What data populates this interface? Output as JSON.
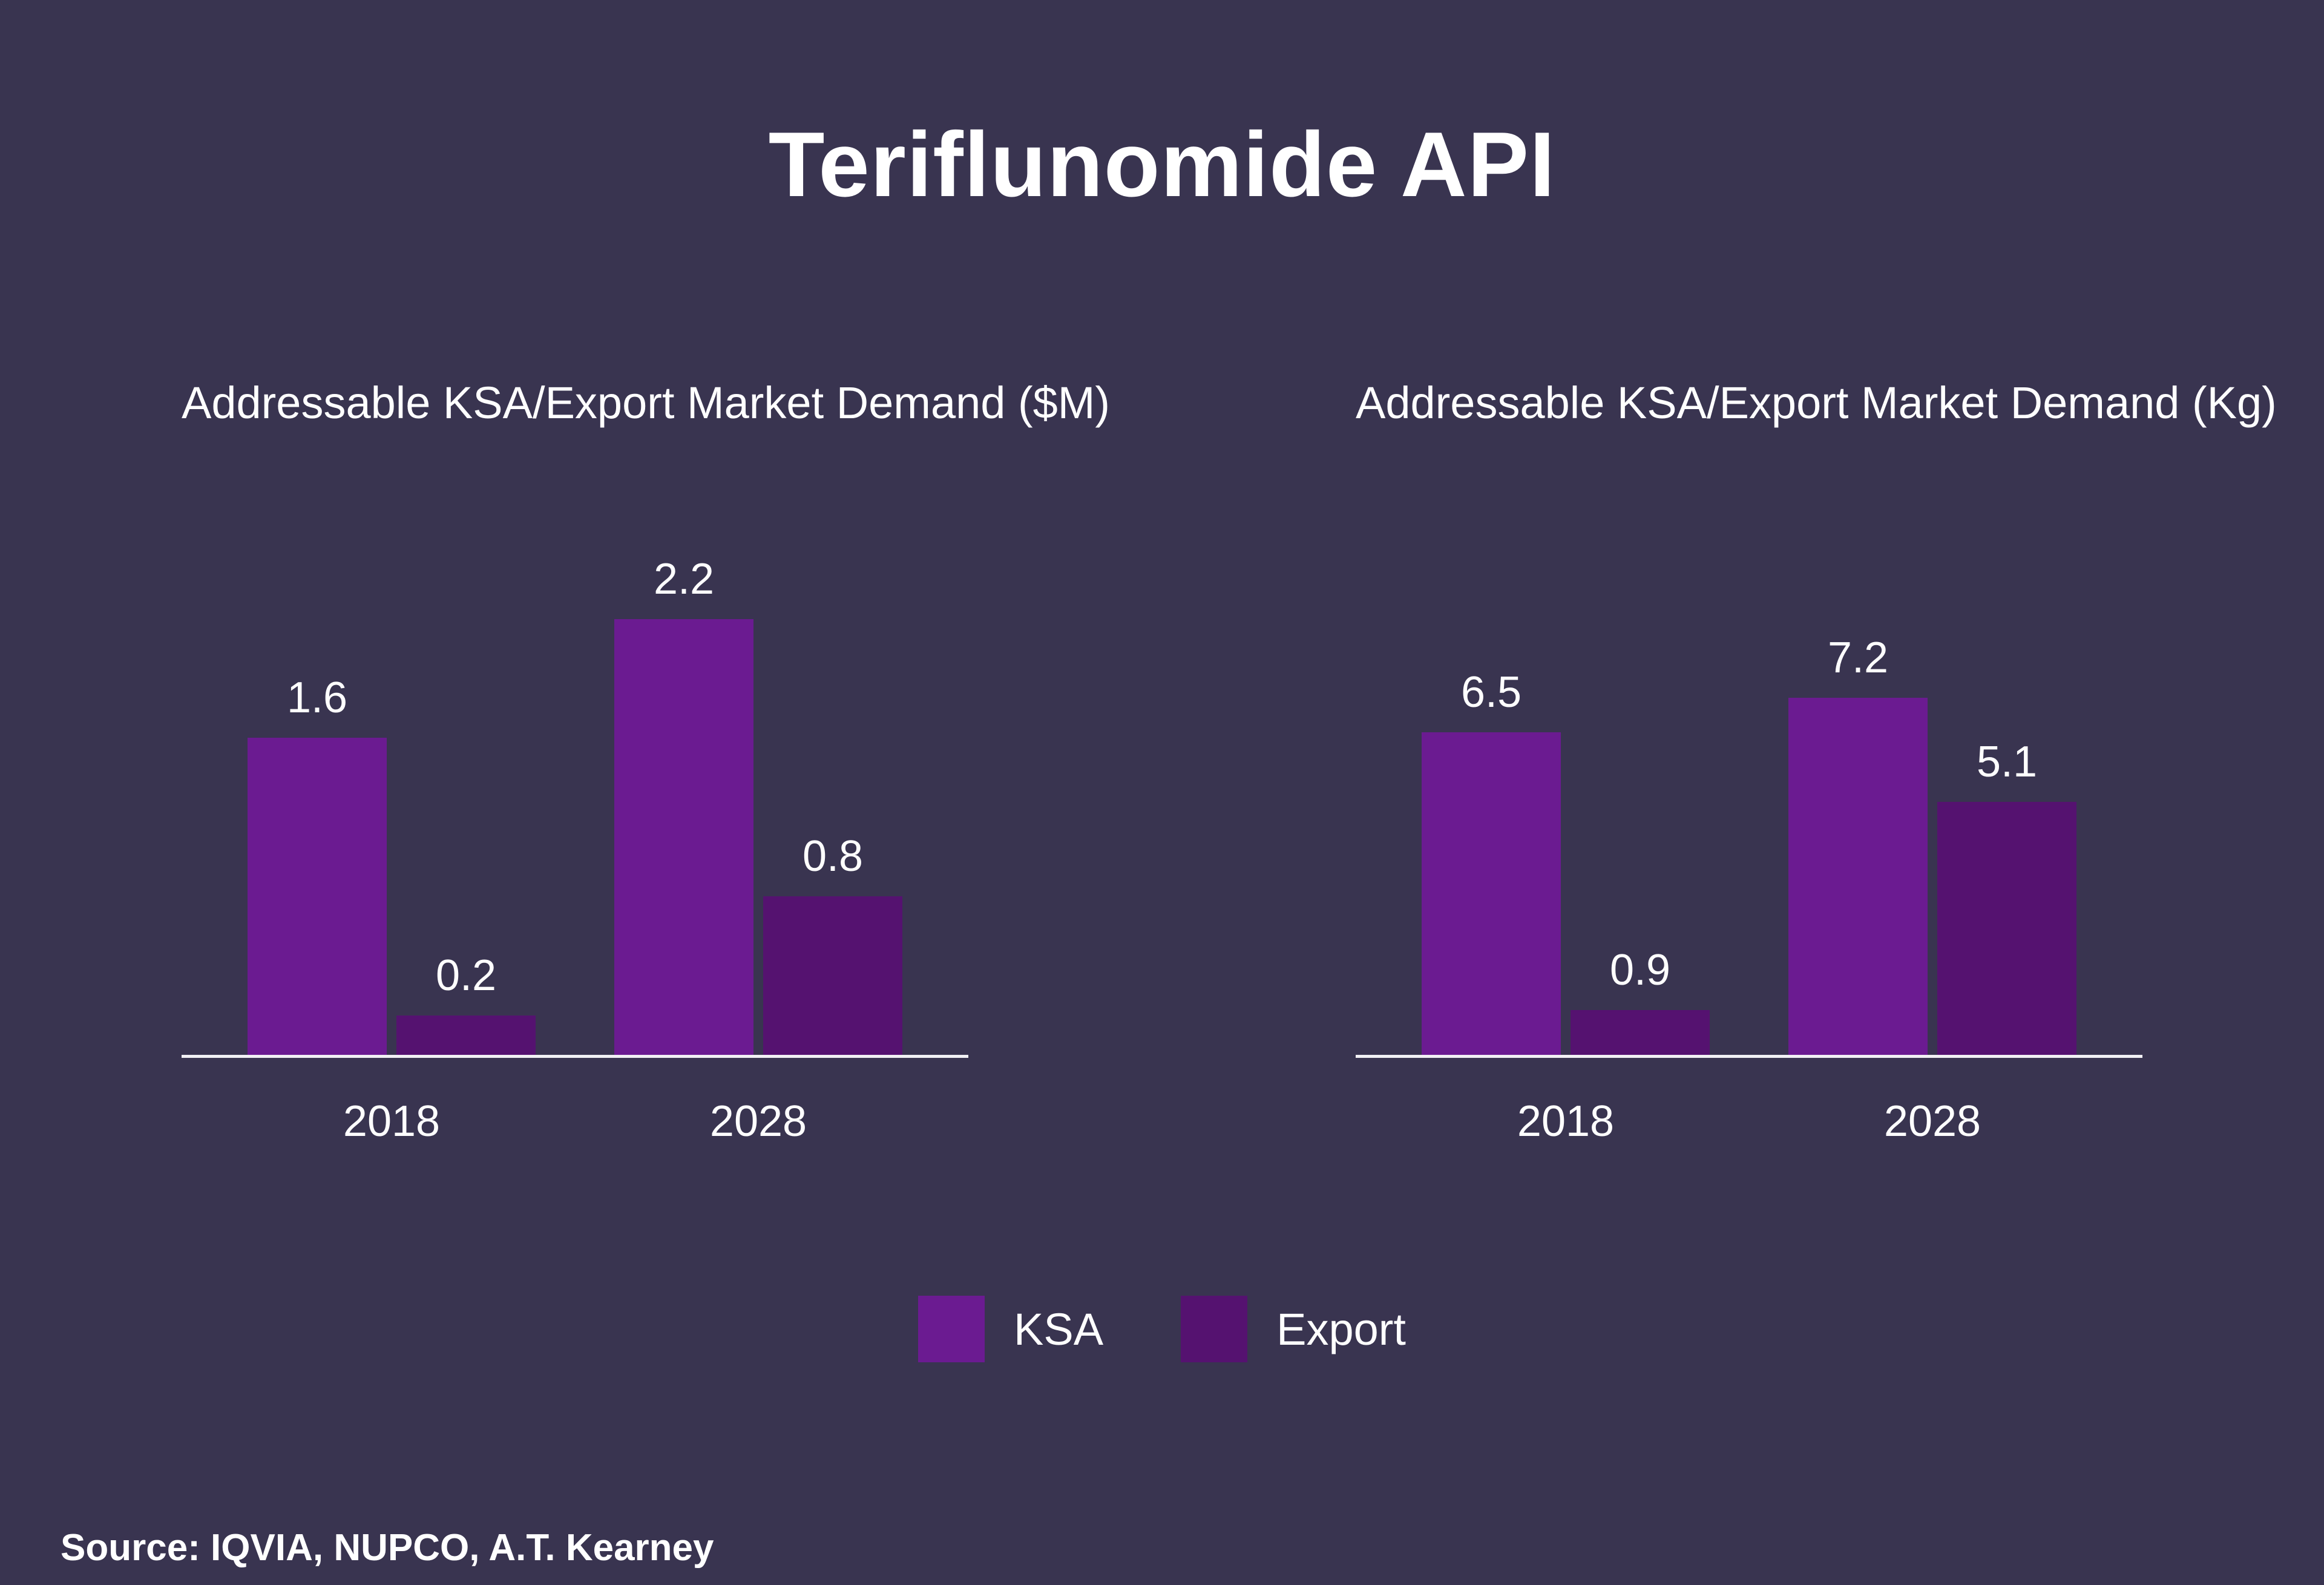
{
  "slide": {
    "title": "Teriflunomide API",
    "source": "Source: IQVIA, NUPCO, A.T. Kearney"
  },
  "colors": {
    "background": "#393450",
    "text": "#ffffff",
    "axis_line": "#f2f1f5",
    "ksa": "#6b1b91",
    "export": "#551270"
  },
  "legend": {
    "position": "bottom-center",
    "items": [
      {
        "label": "KSA",
        "color": "#6b1b91"
      },
      {
        "label": "Export",
        "color": "#551270"
      }
    ]
  },
  "chart_data": [
    {
      "type": "bar",
      "title": "Addressable KSA/Export Market Demand ($M)",
      "categories": [
        "2018",
        "2028"
      ],
      "series": [
        {
          "name": "KSA",
          "color": "#6b1b91",
          "values": [
            1.6,
            2.2
          ]
        },
        {
          "name": "Export",
          "color": "#551270",
          "values": [
            0.2,
            0.8
          ]
        }
      ],
      "ylim": [
        0,
        2.2
      ],
      "grid": false,
      "value_labels": true,
      "axis_line": "bottom"
    },
    {
      "type": "bar",
      "title": "Addressable KSA/Export Market Demand (Kg)",
      "categories": [
        "2018",
        "2028"
      ],
      "series": [
        {
          "name": "KSA",
          "color": "#6b1b91",
          "values": [
            6.5,
            7.2
          ]
        },
        {
          "name": "Export",
          "color": "#551270",
          "values": [
            0.9,
            5.1
          ]
        }
      ],
      "ylim": [
        0,
        7.2
      ],
      "grid": false,
      "value_labels": true,
      "axis_line": "bottom"
    }
  ]
}
